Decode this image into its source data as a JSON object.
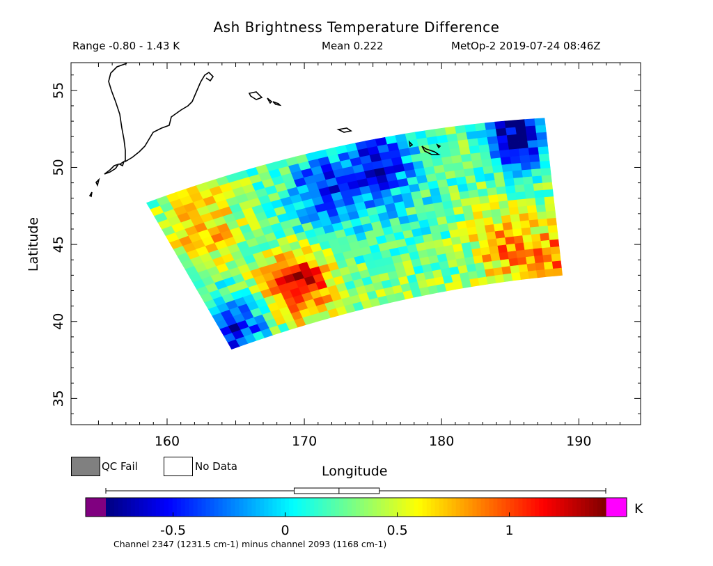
{
  "header": {
    "title": "Ash Brightness Temperature Difference",
    "range": "Range -0.80 - 1.43 K",
    "mean": "Mean 0.222",
    "satellite_time": "MetOp-2 2019-07-24 08:46Z"
  },
  "legend": {
    "qc_fail": "QC Fail",
    "no_data": "No Data",
    "qc_fail_color": "#808080",
    "no_data_color": "#ffffff"
  },
  "colorbar": {
    "unit": "K",
    "under_color": "#800080",
    "over_color": "#ff00ff",
    "ticks": [
      "-0.5",
      "0",
      "0.5",
      "1"
    ],
    "tick_values": [
      -0.5,
      0,
      0.5,
      1
    ],
    "vmin": -0.8,
    "vmax": 1.43,
    "colormap": "jet",
    "boxplot": {
      "min": -0.8,
      "q1": 0.04,
      "median": 0.24,
      "q3": 0.42,
      "max": 1.43
    }
  },
  "channel_note": "Channel 2347 (1231.5 cm-1) minus channel 2093 (1168 cm-1)",
  "chart_data": {
    "type": "heatmap",
    "title": "Ash Brightness Temperature Difference",
    "xlabel": "Longitude",
    "ylabel": "Latitude",
    "xlim": [
      153,
      194.5
    ],
    "ylim": [
      33.3,
      56.8
    ],
    "x_ticks": [
      160,
      170,
      180,
      190
    ],
    "y_ticks": [
      35,
      40,
      45,
      50,
      55
    ],
    "value_range": [
      -0.8,
      1.43
    ],
    "mean": 0.222,
    "swath_corners": {
      "top_left": [
        158.5,
        47.7
      ],
      "top_right": [
        187.5,
        53.2
      ],
      "bottom_right": [
        188.8,
        43.0
      ],
      "bottom_left": [
        164.7,
        38.2
      ]
    },
    "features": [
      {
        "name": "hotspot",
        "lon": 169.5,
        "lat": 42.5,
        "value": 1.3
      },
      {
        "name": "low",
        "lon": 175.5,
        "lat": 50.3,
        "value": -0.6
      },
      {
        "name": "low",
        "lon": 185.5,
        "lat": 52.0,
        "value": -0.75
      },
      {
        "name": "low",
        "lon": 171.5,
        "lat": 48.5,
        "value": -0.45
      },
      {
        "name": "low",
        "lon": 165.0,
        "lat": 39.5,
        "value": -0.55
      },
      {
        "name": "warm",
        "lon": 184.5,
        "lat": 45.0,
        "value": 0.8
      },
      {
        "name": "warm",
        "lon": 162.5,
        "lat": 46.3,
        "value": 0.8
      },
      {
        "name": "warm",
        "lon": 188.5,
        "lat": 44.0,
        "value": 0.9
      }
    ]
  }
}
